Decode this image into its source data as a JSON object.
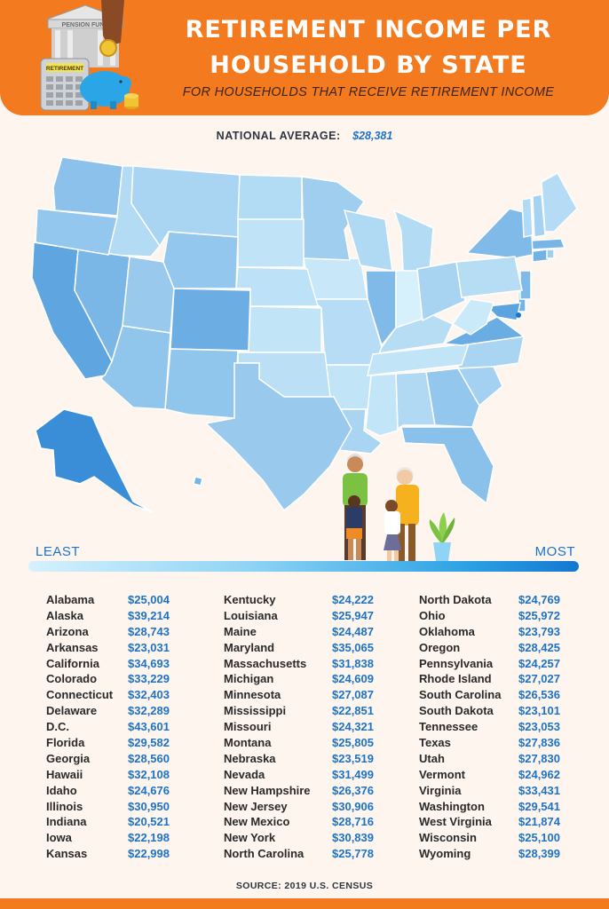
{
  "header": {
    "title_line1": "Retirement Income Per",
    "title_line2": "Household by State",
    "subtitle": "For households that receive retirement income",
    "illustration": {
      "building_sign": "PENSION FUND",
      "calculator_label": "RETIREMENT",
      "icons": [
        "bank-building-icon",
        "calculator-icon",
        "piggy-bank-icon",
        "coin-stack-icon",
        "hand-with-coin-icon"
      ]
    }
  },
  "national_average": {
    "label": "NATIONAL AVERAGE:",
    "value": "$28,381"
  },
  "scale": {
    "least_label": "LEAST",
    "most_label": "MOST",
    "color_low": "#d6f1fc",
    "color_high": "#1577d0"
  },
  "source": "SOURCE: 2019 U.S. CENSUS",
  "colors": {
    "brand_orange": "#f47a1f",
    "value_blue": "#1e73c8",
    "background": "#fdf5ee"
  },
  "chart_data": {
    "type": "table",
    "title": "Retirement Income Per Household by State",
    "subtitle": "For households that receive retirement income",
    "national_average": 28381,
    "rows": [
      {
        "state": "Alabama",
        "display": "$25,004",
        "value": 25004
      },
      {
        "state": "Alaska",
        "display": "$39,214",
        "value": 39214
      },
      {
        "state": "Arizona",
        "display": "$28,743",
        "value": 28743
      },
      {
        "state": "Arkansas",
        "display": "$23,031",
        "value": 23031
      },
      {
        "state": "California",
        "display": "$34,693",
        "value": 34693
      },
      {
        "state": "Colorado",
        "display": "$33,229",
        "value": 33229
      },
      {
        "state": "Connecticut",
        "display": "$32,403",
        "value": 32403
      },
      {
        "state": "Delaware",
        "display": "$32,289",
        "value": 32289
      },
      {
        "state": "D.C.",
        "display": "$43,601",
        "value": 43601
      },
      {
        "state": "Florida",
        "display": "$29,582",
        "value": 29582
      },
      {
        "state": "Georgia",
        "display": "$28,560",
        "value": 28560
      },
      {
        "state": "Hawaii",
        "display": "$32,108",
        "value": 32108
      },
      {
        "state": "Idaho",
        "display": "$24,676",
        "value": 24676
      },
      {
        "state": "Illinois",
        "display": "$30,950",
        "value": 30950
      },
      {
        "state": "Indiana",
        "display": "$20,521",
        "value": 20521
      },
      {
        "state": "Iowa",
        "display": "$22,198",
        "value": 22198
      },
      {
        "state": "Kansas",
        "display": "$22,998",
        "value": 22998
      },
      {
        "state": "Kentucky",
        "display": "$24,222",
        "value": 24222
      },
      {
        "state": "Louisiana",
        "display": "$25,947",
        "value": 25947
      },
      {
        "state": "Maine",
        "display": "$24,487",
        "value": 24487
      },
      {
        "state": "Maryland",
        "display": "$35,065",
        "value": 35065
      },
      {
        "state": "Massachusetts",
        "display": "$31,838",
        "value": 31838
      },
      {
        "state": "Michigan",
        "display": "$24,609",
        "value": 24609
      },
      {
        "state": "Minnesota",
        "display": "$27,087",
        "value": 27087
      },
      {
        "state": "Mississippi",
        "display": "$22,851",
        "value": 22851
      },
      {
        "state": "Missouri",
        "display": "$24,321",
        "value": 24321
      },
      {
        "state": "Montana",
        "display": "$25,805",
        "value": 25805
      },
      {
        "state": "Nebraska",
        "display": "$23,519",
        "value": 23519
      },
      {
        "state": "Nevada",
        "display": "$31,499",
        "value": 31499
      },
      {
        "state": "New Hampshire",
        "display": "$26,376",
        "value": 26376
      },
      {
        "state": "New Jersey",
        "display": "$30,906",
        "value": 30906
      },
      {
        "state": "New Mexico",
        "display": "$28,716",
        "value": 28716
      },
      {
        "state": "New York",
        "display": "$30,839",
        "value": 30839
      },
      {
        "state": "North Carolina",
        "display": "$25,778",
        "value": 25778
      },
      {
        "state": "North Dakota",
        "display": "$24,769",
        "value": 24769
      },
      {
        "state": "Ohio",
        "display": "$25,972",
        "value": 25972
      },
      {
        "state": "Oklahoma",
        "display": "$23,793",
        "value": 23793
      },
      {
        "state": "Oregon",
        "display": "$28,425",
        "value": 28425
      },
      {
        "state": "Pennsylvania",
        "display": "$24,257",
        "value": 24257
      },
      {
        "state": "Rhode Island",
        "display": "$27,027",
        "value": 27027
      },
      {
        "state": "South Carolina",
        "display": "$26,536",
        "value": 26536
      },
      {
        "state": "South Dakota",
        "display": "$23,101",
        "value": 23101
      },
      {
        "state": "Tennessee",
        "display": "$23,053",
        "value": 23053
      },
      {
        "state": "Texas",
        "display": "$27,836",
        "value": 27836
      },
      {
        "state": "Utah",
        "display": "$27,830",
        "value": 27830
      },
      {
        "state": "Vermont",
        "display": "$24,962",
        "value": 24962
      },
      {
        "state": "Virginia",
        "display": "$33,431",
        "value": 33431
      },
      {
        "state": "Washington",
        "display": "$29,541",
        "value": 29541
      },
      {
        "state": "West Virginia",
        "display": "$21,874",
        "value": 21874
      },
      {
        "state": "Wisconsin",
        "display": "$25,100",
        "value": 25100
      },
      {
        "state": "Wyoming",
        "display": "$28,399",
        "value": 28399
      }
    ]
  }
}
